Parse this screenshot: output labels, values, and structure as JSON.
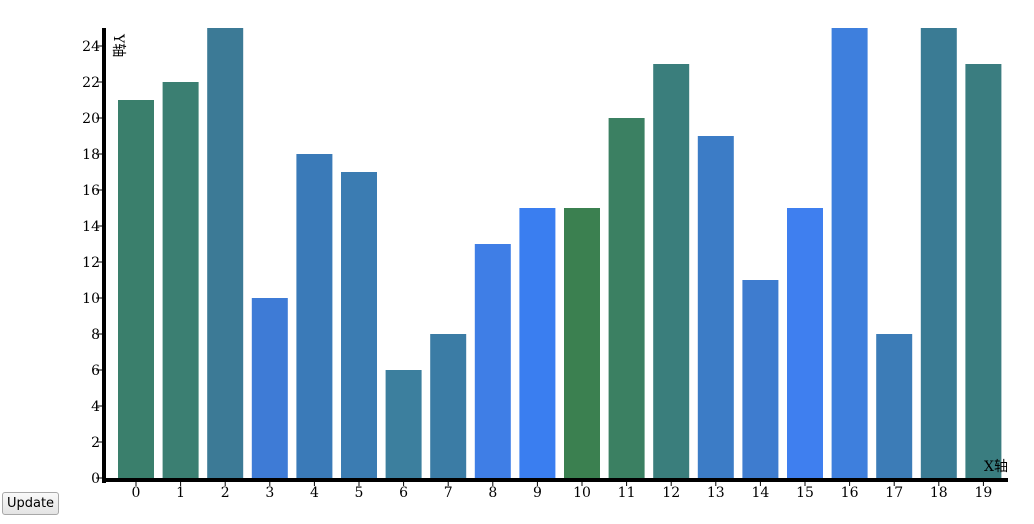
{
  "controls": {
    "update_label": "Update"
  },
  "chart_data": {
    "type": "bar",
    "title": "",
    "xlabel": "X轴",
    "ylabel": "Y轴",
    "categories": [
      "0",
      "1",
      "2",
      "3",
      "4",
      "5",
      "6",
      "7",
      "8",
      "9",
      "10",
      "11",
      "12",
      "13",
      "14",
      "15",
      "16",
      "17",
      "18",
      "19"
    ],
    "values": [
      21,
      22,
      25,
      10,
      18,
      17,
      6,
      8,
      13,
      15,
      15,
      20,
      23,
      19,
      11,
      15,
      25,
      8,
      25,
      23
    ],
    "ylim": [
      0,
      25
    ],
    "yticks": [
      0,
      2,
      4,
      6,
      8,
      10,
      12,
      14,
      16,
      18,
      20,
      22,
      24
    ],
    "grid": false,
    "legend": "none",
    "bar_colors": [
      "#3a7f6c",
      "#3b7f72",
      "#3c7a96",
      "#3e7bd6",
      "#3a7ab8",
      "#3b7cb2",
      "#3c7f9e",
      "#3b7ca5",
      "#3f7ee6",
      "#3a7ef0",
      "#3b8050",
      "#3b8062",
      "#3a7e7c",
      "#3c7cc6",
      "#3e7ccf",
      "#3f7fef",
      "#3e7fdd",
      "#3c7cb7",
      "#3a7b94",
      "#3a7d80"
    ]
  }
}
